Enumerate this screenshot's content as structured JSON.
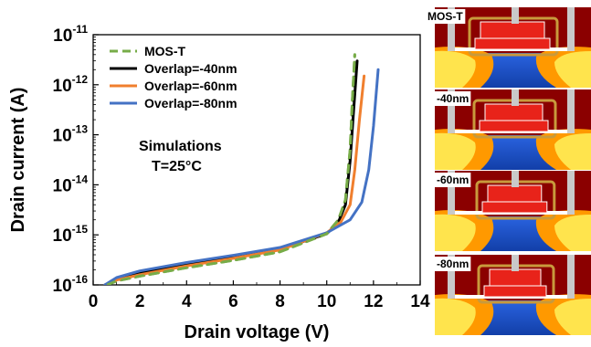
{
  "chart_data": {
    "type": "line",
    "xlabel": "Drain voltage (V)",
    "ylabel": "Drain current (A)",
    "xlim": [
      0,
      14
    ],
    "ylim_log10": [
      -16,
      -11
    ],
    "y_scale": "log",
    "x_ticks": [
      "0",
      "2",
      "4",
      "6",
      "8",
      "10",
      "12",
      "14"
    ],
    "y_ticks": [
      {
        "base": "10",
        "exp": "-11"
      },
      {
        "base": "10",
        "exp": "-12"
      },
      {
        "base": "10",
        "exp": "-13"
      },
      {
        "base": "10",
        "exp": "-14"
      },
      {
        "base": "10",
        "exp": "-15"
      },
      {
        "base": "10",
        "exp": "-16"
      }
    ],
    "grid": false,
    "legend_position": "top-left",
    "annotation": [
      "Simulations",
      "T=25°C"
    ],
    "series": [
      {
        "name": "MOS-T",
        "color": "#77AC48",
        "dash": true,
        "x": [
          0.6,
          1,
          2,
          4,
          6,
          8,
          10,
          10.5,
          10.8,
          11,
          11.1,
          11.2
        ],
        "y": [
          1e-16,
          1.2e-16,
          1.5e-16,
          2.2e-16,
          3.1e-16,
          4.6e-16,
          1.05e-15,
          2e-15,
          5e-15,
          5e-14,
          5e-13,
          4e-12
        ]
      },
      {
        "name": "Overlap=-40nm",
        "color": "#000000",
        "dash": false,
        "x": [
          0.5,
          1,
          2,
          4,
          6,
          8,
          10,
          10.5,
          10.8,
          11,
          11.15,
          11.3
        ],
        "y": [
          1e-16,
          1.3e-16,
          1.7e-16,
          2.5e-16,
          3.5e-16,
          5.2e-16,
          1.05e-15,
          1.8e-15,
          4e-15,
          3e-14,
          3e-13,
          3e-12
        ]
      },
      {
        "name": "Overlap=-60nm",
        "color": "#F07F2E",
        "dash": false,
        "x": [
          0.5,
          1,
          2,
          4,
          6,
          8,
          10,
          10.6,
          11,
          11.2,
          11.4,
          11.6
        ],
        "y": [
          1e-16,
          1.25e-16,
          1.6e-16,
          2.4e-16,
          3.4e-16,
          5e-16,
          1.1e-15,
          1.8e-15,
          4e-15,
          2e-14,
          2e-13,
          1.5e-12
        ]
      },
      {
        "name": "Overlap=-80nm",
        "color": "#4472C4",
        "dash": false,
        "x": [
          0.5,
          1,
          2,
          4,
          6,
          8,
          10,
          11,
          11.5,
          11.8,
          12,
          12.2
        ],
        "y": [
          1e-16,
          1.4e-16,
          1.9e-16,
          2.8e-16,
          3.9e-16,
          5.6e-16,
          1.1e-15,
          2e-15,
          4.5e-15,
          2e-14,
          1.5e-13,
          2e-12
        ]
      }
    ]
  },
  "panels": {
    "labels": [
      "MOS-T",
      "-40nm",
      "-60nm",
      "-80nm"
    ],
    "colors": {
      "background": "#8B0000",
      "gate": "#E8231A",
      "oxide": "#FFFFFF",
      "substrate": "#1D4FD0",
      "contact": "#C9C9C9",
      "liner": "#C89A3C",
      "hot_orange": "#FF9900",
      "hot_yellow": "#FFE44D"
    }
  }
}
